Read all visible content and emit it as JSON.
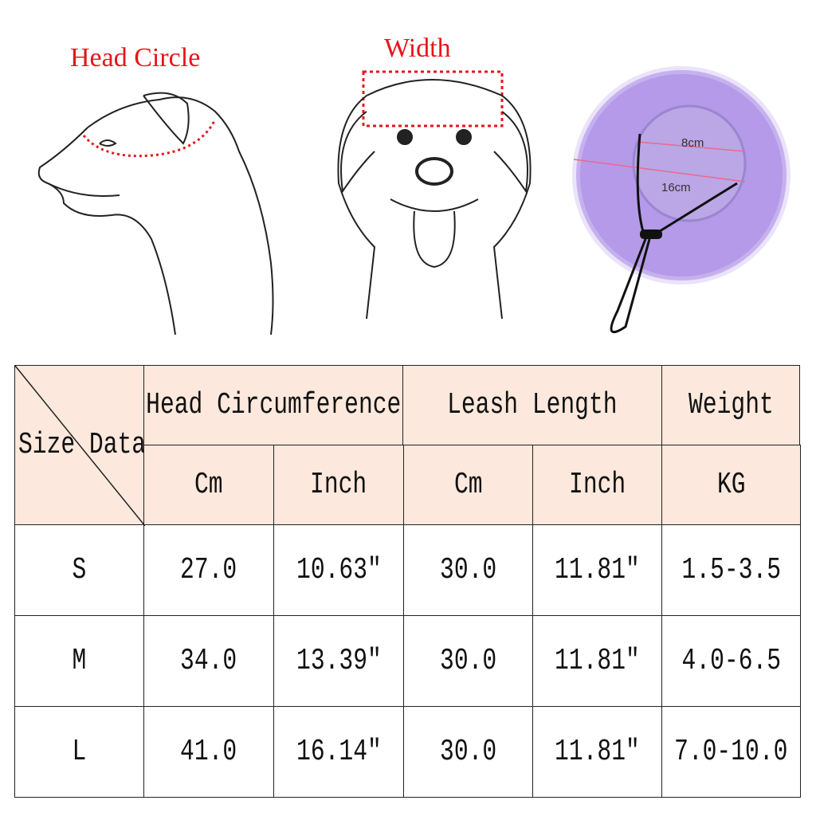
{
  "illustrations": {
    "head_circle_label": "Head Circle",
    "width_label": "Width",
    "hat_inner_label": "8cm",
    "hat_outer_label": "16cm"
  },
  "colors": {
    "label_red": "#e8141b",
    "header_bg": "#fce8dc",
    "hat_purple": "#b49ae8"
  },
  "table": {
    "corner_label": "Size Data",
    "groups": [
      "Head Circumference",
      "Leash Length",
      "Weight"
    ],
    "subheaders": [
      "Cm",
      "Inch",
      "Cm",
      "Inch",
      "KG"
    ],
    "rows": [
      [
        "S",
        "27.0",
        "10.63″",
        "30.0",
        "11.81″",
        "1.5-3.5"
      ],
      [
        "M",
        "34.0",
        "13.39″",
        "30.0",
        "11.81″",
        "4.0-6.5"
      ],
      [
        "L",
        "41.0",
        "16.14″",
        "30.0",
        "11.81″",
        "7.0-10.0"
      ]
    ]
  }
}
